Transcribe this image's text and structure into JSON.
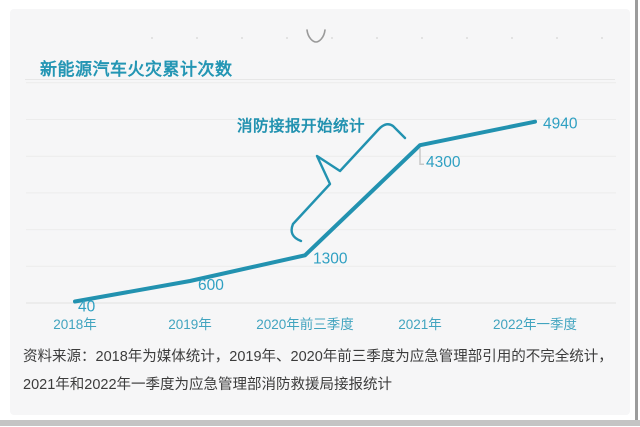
{
  "chart_data": {
    "type": "line",
    "title": "新能源汽车火灾累计次数",
    "categories": [
      "2018年",
      "2019年",
      "2020年前三季度",
      "2021年",
      "2022年一季度"
    ],
    "values": [
      40,
      600,
      1300,
      4300,
      4940
    ],
    "point_labels": [
      "40",
      "600",
      "1300",
      "4300",
      "4940"
    ],
    "annotation": "消防接报开始统计",
    "annotation_range": [
      "2020年前三季度",
      "2021年"
    ],
    "xlabel": "",
    "ylabel": "",
    "ylim": [
      0,
      6000
    ],
    "gridlines": "horizontal",
    "legend": "none",
    "line_color": "#2292b0",
    "point_label_color": "#2fa0c2",
    "axis_label_color": "#41a4bf",
    "grid_color": "#ececec"
  },
  "source_note": "资料来源：2018年为媒体统计，2019年、2020年前三季度为应急管理部引用的不完全统计，2021年和2022年一季度为应急管理部消防救援局接报统计"
}
